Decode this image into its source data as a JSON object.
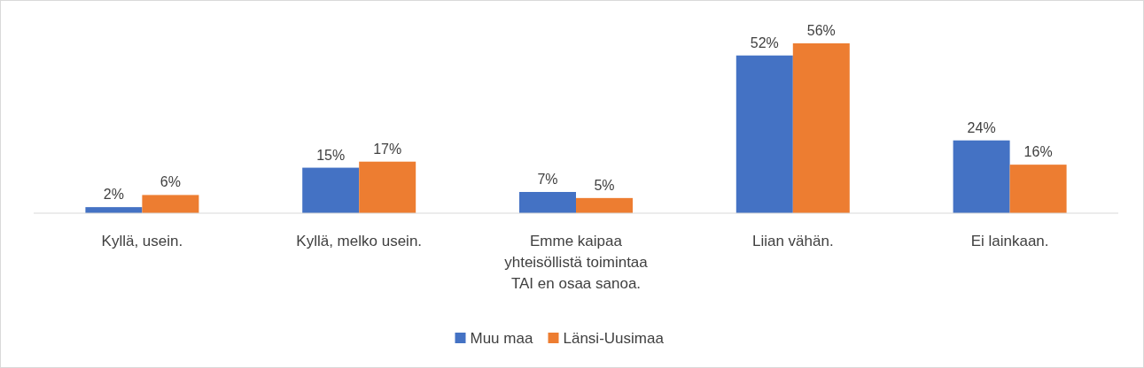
{
  "chart_data": {
    "type": "bar",
    "categories": [
      "Kyllä, usein.",
      "Kyllä, melko usein.",
      "Emme kaipaa yhteisöllistä toimintaa TAI en osaa sanoa.",
      "Liian vähän.",
      "Ei lainkaan."
    ],
    "series": [
      {
        "name": "Muu maa",
        "color": "#4472c4",
        "values": [
          2,
          15,
          7,
          52,
          24
        ],
        "value_labels": [
          "2%",
          "15%",
          "7%",
          "52%",
          "24%"
        ]
      },
      {
        "name": "Länsi-Uusimaa",
        "color": "#ed7d31",
        "values": [
          6,
          17,
          5,
          56,
          16
        ],
        "value_labels": [
          "6%",
          "17%",
          "5%",
          "56%",
          "16%"
        ]
      }
    ],
    "legend": "bottom"
  }
}
